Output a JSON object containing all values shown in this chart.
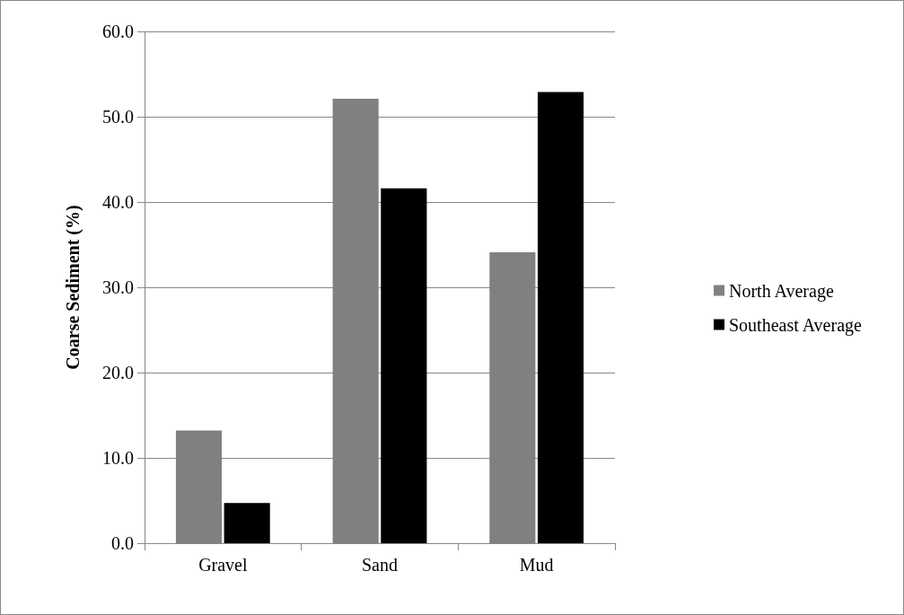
{
  "chart_data": {
    "type": "bar",
    "ylabel": "Coarse Sediment (%)",
    "categories": [
      "Gravel",
      "Sand",
      "Mud"
    ],
    "series": [
      {
        "name": "North Average",
        "color": "#808080",
        "values": [
          13.2,
          52.1,
          34.1
        ]
      },
      {
        "name": "Southeast Average",
        "color": "#000000",
        "values": [
          4.7,
          41.6,
          52.9
        ]
      }
    ],
    "ylim": [
      0,
      60
    ],
    "yticks": [
      {
        "value": 0,
        "label": "0.0"
      },
      {
        "value": 10,
        "label": "10.0"
      },
      {
        "value": 20,
        "label": "20.0"
      },
      {
        "value": 30,
        "label": "30.0"
      },
      {
        "value": 40,
        "label": "40.0"
      },
      {
        "value": 50,
        "label": "50.0"
      },
      {
        "value": 60,
        "label": "60.0"
      }
    ],
    "grid": "y",
    "legend": "right"
  }
}
